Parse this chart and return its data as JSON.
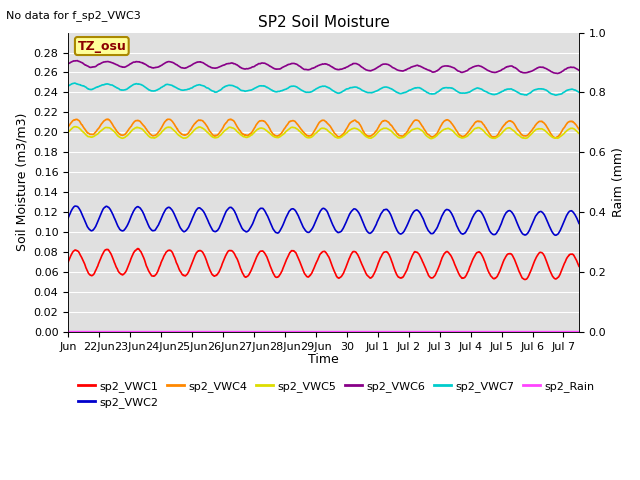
{
  "title": "SP2 Soil Moisture",
  "no_data_text": "No data for f_sp2_VWC3",
  "xlabel": "Time",
  "ylabel_left": "Soil Moisture (m3/m3)",
  "ylabel_right": "Raim (mm)",
  "tz_label": "TZ_osu",
  "xlim_days": 16.5,
  "ylim_left": [
    0.0,
    0.3
  ],
  "ylim_right": [
    0.0,
    1.0
  ],
  "yticks_left": [
    0.0,
    0.02,
    0.04,
    0.06,
    0.08,
    0.1,
    0.12,
    0.14,
    0.16,
    0.18,
    0.2,
    0.22,
    0.24,
    0.26,
    0.28
  ],
  "yticks_right_vals": [
    0.0,
    0.2,
    0.4,
    0.6,
    0.8,
    1.0
  ],
  "yticks_right_labels": [
    "0.0",
    "0.2",
    "0.4",
    "0.6",
    "0.8",
    "1.0"
  ],
  "background_color": "#e0e0e0",
  "grid_color": "#ffffff",
  "series": {
    "sp2_VWC1": {
      "color": "#ff0000",
      "base": 0.07,
      "amp": 0.013,
      "trend": -0.004,
      "noise": 0.003
    },
    "sp2_VWC2": {
      "color": "#0000cc",
      "base": 0.114,
      "amp": 0.012,
      "trend": -0.005,
      "noise": 0.002
    },
    "sp2_VWC4": {
      "color": "#ff8800",
      "base": 0.205,
      "amp": 0.008,
      "trend": -0.002,
      "noise": 0.003
    },
    "sp2_VWC5": {
      "color": "#dddd00",
      "base": 0.2,
      "amp": 0.005,
      "trend": -0.001,
      "noise": 0.002
    },
    "sp2_VWC6": {
      "color": "#880088",
      "base": 0.269,
      "amp": 0.003,
      "trend": -0.007,
      "noise": 0.002
    },
    "sp2_VWC7": {
      "color": "#00cccc",
      "base": 0.246,
      "amp": 0.003,
      "trend": -0.006,
      "noise": 0.002
    },
    "sp2_Rain": {
      "color": "#ff44ff",
      "base": 0.001,
      "amp": 0.0,
      "trend": 0.0,
      "noise": 0.0
    }
  },
  "xtick_labels": [
    "Jun",
    "22Jun",
    "23Jun",
    "24Jun",
    "25Jun",
    "26Jun",
    "27Jun",
    "28Jun",
    "29Jun",
    "30",
    "Jul 1",
    "Jul 2",
    "Jul 3",
    "Jul 4",
    "Jul 5",
    "Jul 6",
    "Jul 7"
  ],
  "xtick_positions": [
    0,
    1,
    2,
    3,
    4,
    5,
    6,
    7,
    8,
    9,
    10,
    11,
    12,
    13,
    14,
    15,
    16
  ],
  "legend_row1": [
    "sp2_VWC1",
    "sp2_VWC2",
    "sp2_VWC4",
    "sp2_VWC5",
    "sp2_VWC6",
    "sp2_VWC7"
  ],
  "legend_row2": [
    "sp2_Rain"
  ],
  "n_points": 2000,
  "lw": 1.2
}
